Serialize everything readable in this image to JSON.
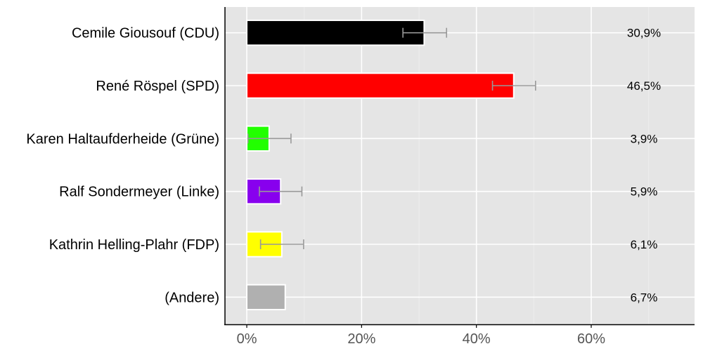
{
  "chart_data": {
    "type": "bar",
    "orientation": "horizontal",
    "categories": [
      "Cemile Giousouf (CDU)",
      "René Röspel (SPD)",
      "Karen Haltaufderheide (Grüne)",
      "Ralf Sondermeyer (Linke)",
      "Kathrin Helling-Plahr (FDP)",
      "(Andere)"
    ],
    "values": [
      30.9,
      46.5,
      3.9,
      5.9,
      6.1,
      6.7
    ],
    "value_labels": [
      "30,9%",
      "46,5%",
      "3,9%",
      "5,9%",
      "6,1%",
      "6,7%"
    ],
    "error_low": [
      27.2,
      42.8,
      0.2,
      2.2,
      2.4,
      null
    ],
    "error_high": [
      34.8,
      50.3,
      7.7,
      9.6,
      9.9,
      null
    ],
    "colors": [
      "#000000",
      "#ff0000",
      "#22ff00",
      "#8800ee",
      "#ffff00",
      "#b0b0b0"
    ],
    "x_ticks": [
      "0%",
      "20%",
      "40%",
      "60%"
    ],
    "x_tick_values": [
      0,
      20,
      40,
      60
    ],
    "xlim": [
      -3.8,
      78
    ],
    "grid": true,
    "background_color": "#e5e5e5",
    "error_bar_color": "#999999"
  }
}
